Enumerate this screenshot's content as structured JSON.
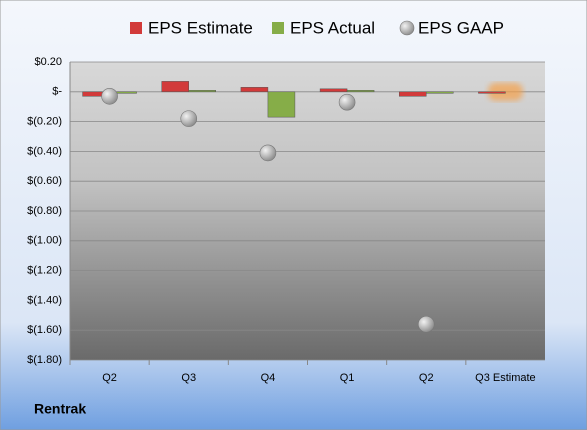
{
  "chart_data": {
    "type": "bar",
    "title": "Rentrak",
    "categories": [
      "Q2",
      "Q3",
      "Q4",
      "Q1",
      "Q2",
      "Q3 Estimate"
    ],
    "series": [
      {
        "name": "EPS Estimate",
        "color": "#d23a3a",
        "values": [
          -0.03,
          0.07,
          0.03,
          0.02,
          -0.03,
          0
        ]
      },
      {
        "name": "EPS Actual",
        "color": "#86ad48",
        "values": [
          -0.01,
          0.01,
          -0.17,
          0.01,
          -0.01,
          null
        ]
      },
      {
        "name": "EPS GAAP",
        "color": "#a8a8a8",
        "values": [
          -0.03,
          -0.18,
          -0.41,
          -0.07,
          -1.56,
          null
        ]
      }
    ],
    "ylim": [
      -1.8,
      0.2
    ],
    "yticks": [
      {
        "value": 0.2,
        "label": "$0.20"
      },
      {
        "value": 0,
        "label": "$-"
      },
      {
        "value": -0.2,
        "label": "$(0.20)"
      },
      {
        "value": -0.4,
        "label": "$(0.40)"
      },
      {
        "value": -0.6,
        "label": "$(0.60)"
      },
      {
        "value": -0.8,
        "label": "$(0.80)"
      },
      {
        "value": -1.0,
        "label": "$(1.00)"
      },
      {
        "value": -1.2,
        "label": "$(1.20)"
      },
      {
        "value": -1.4,
        "label": "$(1.40)"
      },
      {
        "value": -1.6,
        "label": "$(1.60)"
      },
      {
        "value": -1.8,
        "label": "$(1.80)"
      }
    ],
    "grid": true
  }
}
